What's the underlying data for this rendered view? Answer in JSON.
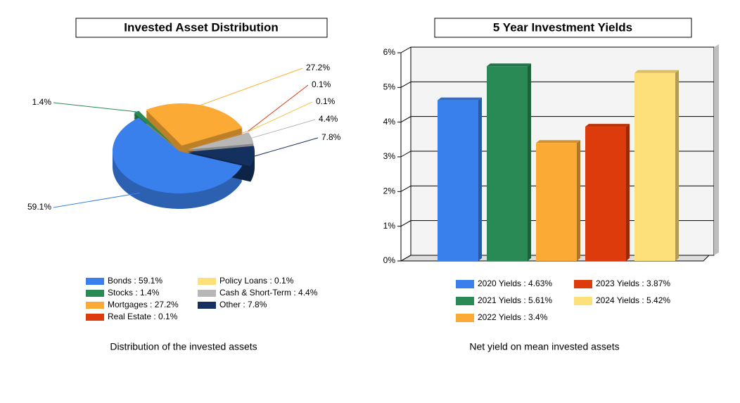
{
  "chart_data": [
    {
      "type": "pie",
      "title": "Invested Asset Distribution",
      "caption": "Distribution of the invested assets",
      "legend": [
        "Bonds : 59.1%",
        "Stocks : 1.4%",
        "Mortgages : 27.2%",
        "Real Estate : 0.1%",
        "Policy Loans : 0.1%",
        "Cash & Short-Term : 4.4%",
        "Other : 7.8%"
      ],
      "values": [
        59.1,
        1.4,
        27.2,
        0.1,
        0.1,
        4.4,
        7.8
      ],
      "value_labels": [
        "59.1%",
        "1.4%",
        "27.2%",
        "0.1%",
        "0.1%",
        "4.4%",
        "7.8%"
      ],
      "colors": [
        "#3a80ec",
        "#2a8a55",
        "#fbab35",
        "#dd3b0b",
        "#fde07a",
        "#b7b7b7",
        "#13305e"
      ]
    },
    {
      "type": "bar",
      "title": "5 Year Investment Yields",
      "caption": "Net yield on mean invested assets",
      "series": [
        {
          "name": "2020 Yields : 4.63%",
          "color": "#3a80ec",
          "values": [
            4.63
          ]
        },
        {
          "name": "2021 Yields : 5.61%",
          "color": "#2a8a55",
          "values": [
            5.61
          ]
        },
        {
          "name": "2022 Yields : 3.4%",
          "color": "#fbab35",
          "values": [
            3.4
          ]
        },
        {
          "name": "2023 Yields : 3.87%",
          "color": "#dd3b0b",
          "values": [
            3.87
          ]
        },
        {
          "name": "2024 Yields : 5.42%",
          "color": "#fde07a",
          "values": [
            5.42
          ]
        }
      ],
      "ylim": [
        0,
        6
      ],
      "yticks": [
        {
          "value": 0,
          "label": "0%"
        },
        {
          "value": 1,
          "label": "1%"
        },
        {
          "value": 2,
          "label": "2%"
        },
        {
          "value": 3,
          "label": "3%"
        },
        {
          "value": 4,
          "label": "4%"
        },
        {
          "value": 5,
          "label": "5%"
        },
        {
          "value": 6,
          "label": "6%"
        }
      ],
      "grid": true
    }
  ]
}
